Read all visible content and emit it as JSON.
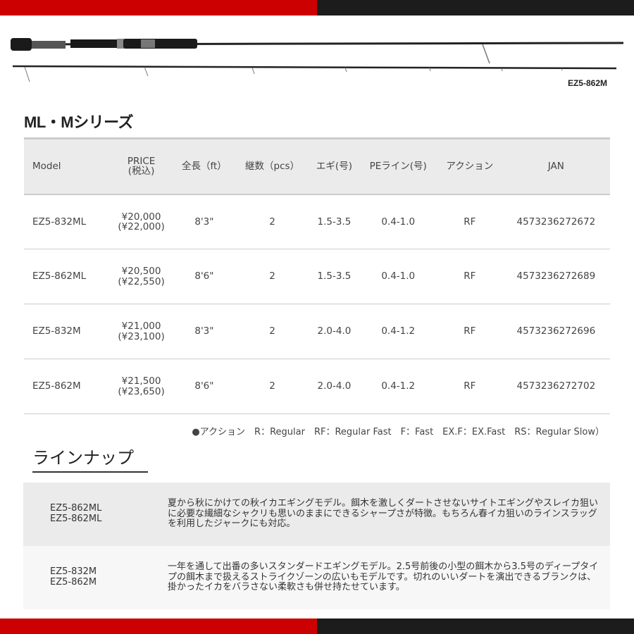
{
  "colors": {
    "red": "#cc0000",
    "dark": "#1c1c1c",
    "header_bg": "#ebebeb"
  },
  "rod_label": "EZ5-862M",
  "series_title": "ML・Mシリーズ",
  "table": {
    "headers": [
      "Model",
      "PRICE\n(税込)",
      "全長（ft）",
      "継数（pcs）",
      "エギ(号)",
      "PEライン(号)",
      "アクション",
      "JAN"
    ],
    "rows": [
      {
        "model": "EZ5-832ML",
        "price": "¥20,000",
        "price_tax": "(¥22,000)",
        "length": "8'3\"",
        "pcs": "2",
        "egi": "1.5-3.5",
        "pe": "0.4-1.0",
        "action": "RF",
        "jan": "4573236272672"
      },
      {
        "model": "EZ5-862ML",
        "price": "¥20,500",
        "price_tax": "(¥22,550)",
        "length": "8'6\"",
        "pcs": "2",
        "egi": "1.5-3.5",
        "pe": "0.4-1.0",
        "action": "RF",
        "jan": "4573236272689"
      },
      {
        "model": "EZ5-832M",
        "price": "¥21,000",
        "price_tax": "(¥23,100)",
        "length": "8'3\"",
        "pcs": "2",
        "egi": "2.0-4.0",
        "pe": "0.4-1.2",
        "action": "RF",
        "jan": "4573236272696"
      },
      {
        "model": "EZ5-862M",
        "price": "¥21,500",
        "price_tax": "(¥23,650)",
        "length": "8'6\"",
        "pcs": "2",
        "egi": "2.0-4.0",
        "pe": "0.4-1.2",
        "action": "RF",
        "jan": "4573236272702"
      }
    ]
  },
  "action_note": "●アクション　R：Regular　RF：Regular Fast　F：Fast　EX.F：EX.Fast　RS：Regular Slow）",
  "lineup_heading": "ラインナップ",
  "lineup": [
    {
      "model1": "EZ5-862ML",
      "model2": "EZ5-862ML",
      "text": "夏から秋にかけての秋イカエギングモデル。餌木を激しくダートさせないサイトエギングやスレイカ狙いに必要な繊細なシャクリも思いのままにできるシャープさが特徴。もちろん春イカ狙いのラインスラッグを利用したジャークにも対応。"
    },
    {
      "model1": "EZ5-832M",
      "model2": "EZ5-862M",
      "text": "一年を通して出番の多いスタンダードエギングモデル。2.5号前後の小型の餌木から3.5号のディープタイプの餌木まで扱えるストライクゾーンの広いもモデルです。切れのいいダートを演出できるブランクは、掛かったイカをバラさない柔軟さも併せ持たせています。"
    }
  ]
}
